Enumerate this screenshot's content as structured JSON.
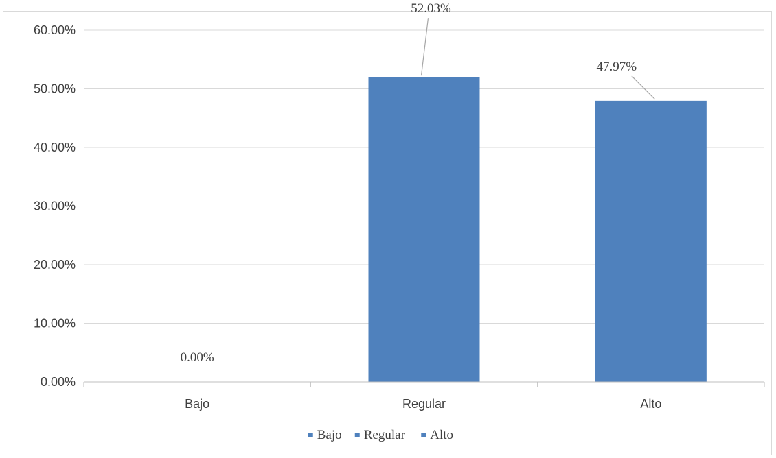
{
  "chart_data": {
    "type": "bar",
    "categories": [
      "Bajo",
      "Regular",
      "Alto"
    ],
    "values": [
      0.0,
      52.03,
      47.97
    ],
    "data_labels": [
      "0.00%",
      "52.03%",
      "47.97%"
    ],
    "ylim": [
      0,
      60
    ],
    "yticks": [
      0,
      10,
      20,
      30,
      40,
      50,
      60
    ],
    "ytick_labels": [
      "0.00%",
      "10.00%",
      "20.00%",
      "30.00%",
      "40.00%",
      "50.00%",
      "60.00%"
    ],
    "bar_color": "#4f81bd",
    "grid": true,
    "legend": {
      "placement": "bottom",
      "entries": [
        "Bajo",
        "Regular",
        "Alto"
      ]
    }
  }
}
